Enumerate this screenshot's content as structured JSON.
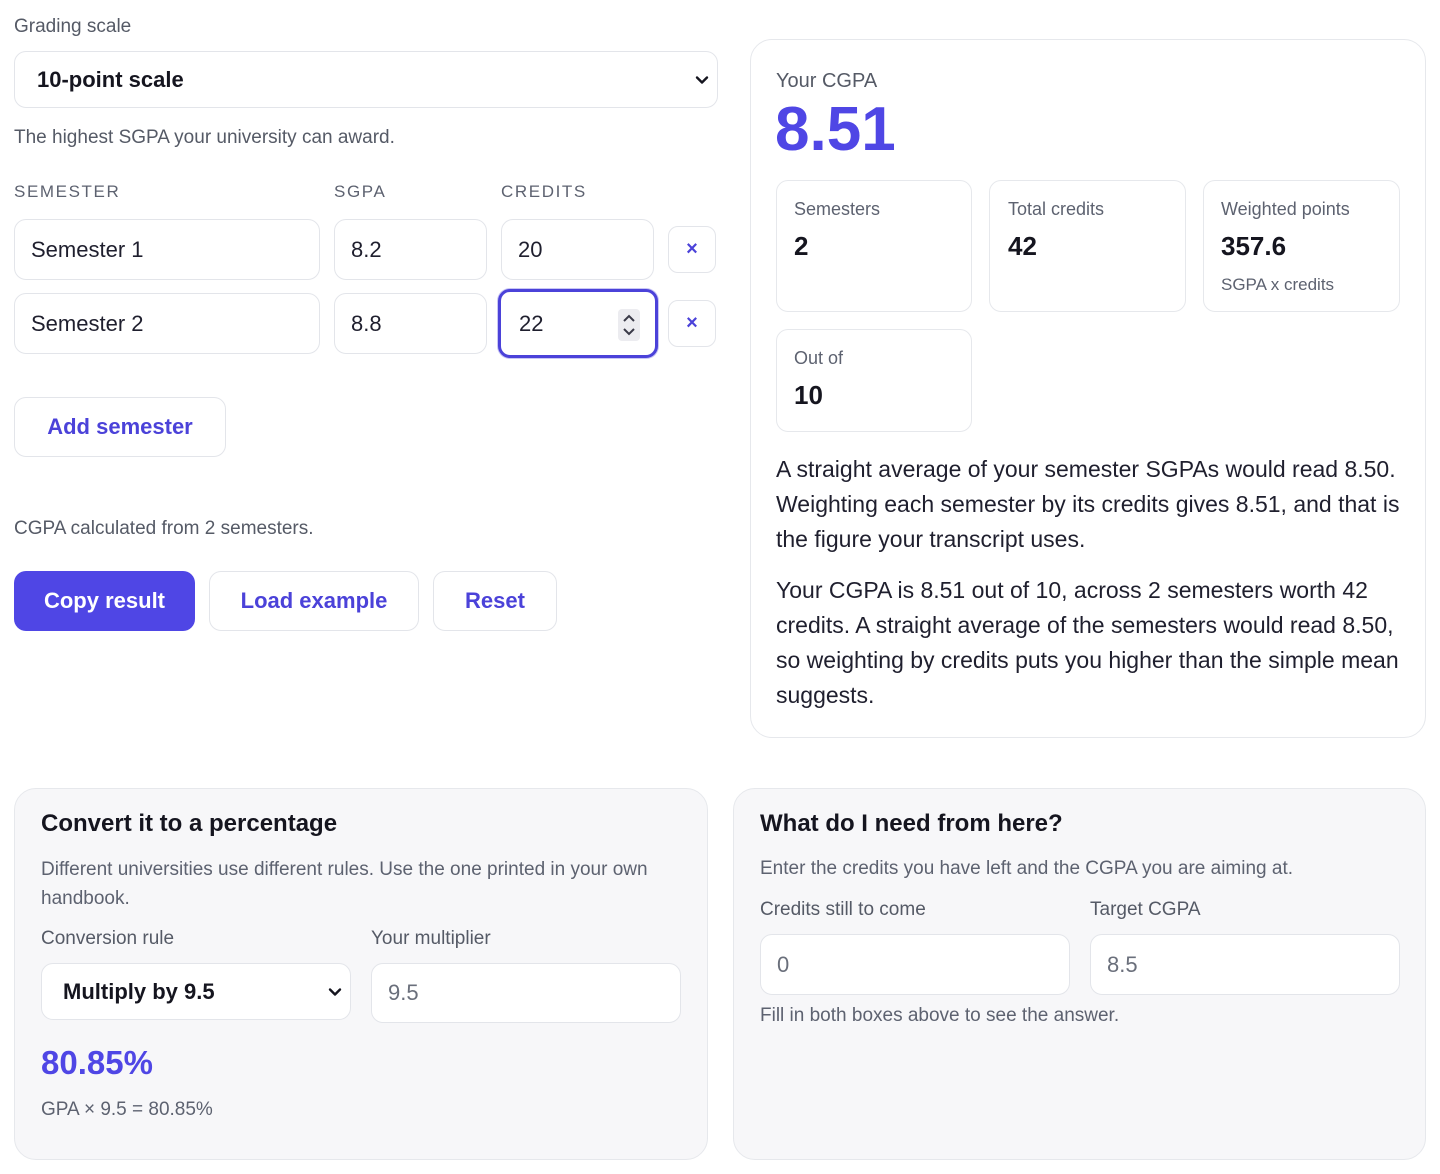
{
  "grading": {
    "label": "Grading scale",
    "selected": "10-point scale",
    "help": "The highest SGPA your university can award."
  },
  "table": {
    "headers": [
      "SEMESTER",
      "SGPA",
      "CREDITS"
    ],
    "rows": [
      {
        "name": "Semester 1",
        "sgpa": "8.2",
        "credits": "20",
        "remove": "×"
      },
      {
        "name": "Semester 2",
        "sgpa": "8.8",
        "credits": "22",
        "remove": "×"
      }
    ]
  },
  "actions": {
    "add_semester": "Add semester",
    "status": "CGPA calculated from 2 semesters.",
    "copy": "Copy result",
    "load_example": "Load example",
    "reset": "Reset"
  },
  "result": {
    "label": "Your CGPA",
    "value": "8.51",
    "stats": [
      {
        "label": "Semesters",
        "value": "2"
      },
      {
        "label": "Total credits",
        "value": "42"
      },
      {
        "label": "Weighted points",
        "value": "357.6",
        "sub": "SGPA x credits"
      },
      {
        "label": "Out of",
        "value": "10"
      }
    ],
    "para1": "A straight average of your semester SGPAs would read 8.50. Weighting each semester by its credits gives 8.51, and that is the figure your transcript uses.",
    "para2": "Your CGPA is 8.51 out of 10, across 2 semesters worth 42 credits. A straight average of the semesters would read 8.50, so weighting by credits puts you higher than the simple mean suggests."
  },
  "percentage": {
    "title": "Convert it to a percentage",
    "desc": "Different universities use different rules. Use the one printed in your own handbook.",
    "rule_label": "Conversion rule",
    "rule_selected": "Multiply by 9.5",
    "multiplier_label": "Your multiplier",
    "multiplier_value": "9.5",
    "result": "80.85%",
    "formula": "GPA × 9.5 = 80.85%"
  },
  "need": {
    "title": "What do I need from here?",
    "desc": "Enter the credits you have left and the CGPA you are aiming at.",
    "credits_label": "Credits still to come",
    "credits_value": "0",
    "target_label": "Target CGPA",
    "target_value": "8.5",
    "hint": "Fill in both boxes above to see the answer."
  },
  "colors": {
    "accent": "#4f46e5",
    "accent_text": "#4b42d9",
    "border": "#e3e5ea",
    "panel_bg": "#f7f7f9"
  },
  "icons": {
    "select_chevron": "chevron-down-icon",
    "remove": "close-icon",
    "stepper": "stepper-icon"
  }
}
